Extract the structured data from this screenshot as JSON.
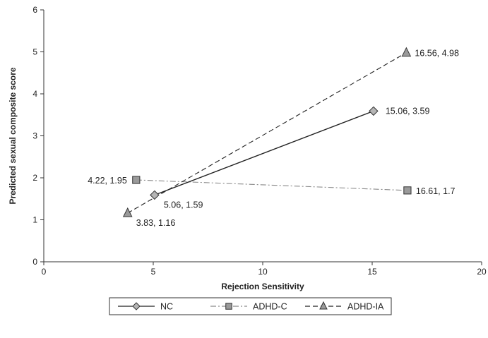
{
  "chart_data": {
    "type": "line",
    "xlabel": "Rejection Sensitivity",
    "ylabel": "Predicted sexual composite score",
    "xlim": [
      0,
      20
    ],
    "ylim": [
      0,
      6
    ],
    "x_ticks": [
      "0",
      "5",
      "10",
      "15",
      "20"
    ],
    "y_ticks": [
      "0",
      "1",
      "2",
      "3",
      "4",
      "5",
      "6"
    ],
    "grid": false,
    "legend_position": "bottom",
    "series": [
      {
        "name": "NC",
        "marker": "diamond",
        "line_style": "solid",
        "color": "#222222",
        "marker_fill": "#b5b5b5",
        "points": [
          {
            "x": 5.06,
            "y": 1.59,
            "label": "5.06, 1.59"
          },
          {
            "x": 15.06,
            "y": 3.59,
            "label": "15.06, 3.59"
          }
        ]
      },
      {
        "name": "ADHD-C",
        "marker": "square",
        "line_style": "dash-dot",
        "color": "#8a8a8a",
        "marker_fill": "#9a9a9a",
        "points": [
          {
            "x": 4.22,
            "y": 1.95,
            "label": "4.22, 1.95"
          },
          {
            "x": 16.61,
            "y": 1.7,
            "label": "16.61, 1.7"
          }
        ]
      },
      {
        "name": "ADHD-IA",
        "marker": "triangle",
        "line_style": "dashed",
        "color": "#222222",
        "marker_fill": "#9a9a9a",
        "points": [
          {
            "x": 3.83,
            "y": 1.16,
            "label": "3.83, 1.16"
          },
          {
            "x": 16.56,
            "y": 4.98,
            "label": "16.56, 4.98"
          }
        ]
      }
    ]
  }
}
